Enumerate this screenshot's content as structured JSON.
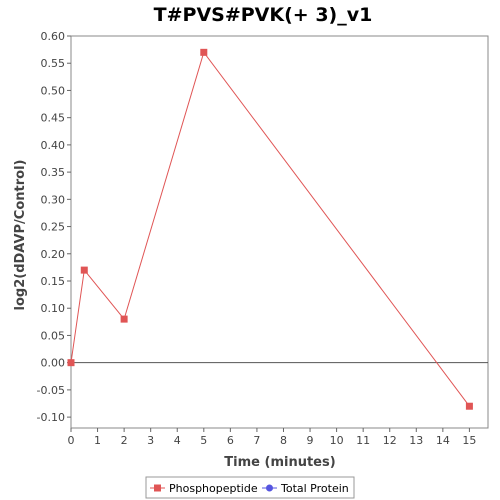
{
  "chart_data": {
    "type": "line",
    "title": "T#PVS#PVK(+ 3)_v1",
    "xlabel": "Time (minutes)",
    "ylabel": "log2(dDAVP/Control)",
    "xlim": [
      0,
      15.7
    ],
    "ylim": [
      -0.12,
      0.6
    ],
    "xticks": [
      0,
      1,
      2,
      3,
      4,
      5,
      6,
      7,
      8,
      9,
      10,
      11,
      12,
      13,
      14,
      15
    ],
    "yticks": [
      -0.1,
      -0.05,
      0.0,
      0.05,
      0.1,
      0.15,
      0.2,
      0.25,
      0.3,
      0.35,
      0.4,
      0.45,
      0.5,
      0.55,
      0.6
    ],
    "xtick_labels": [
      "0",
      "1",
      "2",
      "3",
      "4",
      "5",
      "6",
      "7",
      "8",
      "9",
      "10",
      "11",
      "12",
      "13",
      "14",
      "15"
    ],
    "ytick_labels": [
      "-0.10",
      "-0.05",
      "0.00",
      "0.05",
      "0.10",
      "0.15",
      "0.20",
      "0.25",
      "0.30",
      "0.35",
      "0.40",
      "0.45",
      "0.50",
      "0.55",
      "0.60"
    ],
    "grid": false,
    "zero_line": true,
    "legend": "bottom-center",
    "series": [
      {
        "name": "Phosphopeptide",
        "color": "#e05555",
        "marker": "square",
        "x": [
          0,
          0.5,
          2,
          5,
          15
        ],
        "y": [
          0.0,
          0.17,
          0.08,
          0.57,
          -0.08
        ]
      },
      {
        "name": "Total Protein",
        "color": "#5555e0",
        "marker": "circle",
        "x": [],
        "y": []
      }
    ]
  }
}
